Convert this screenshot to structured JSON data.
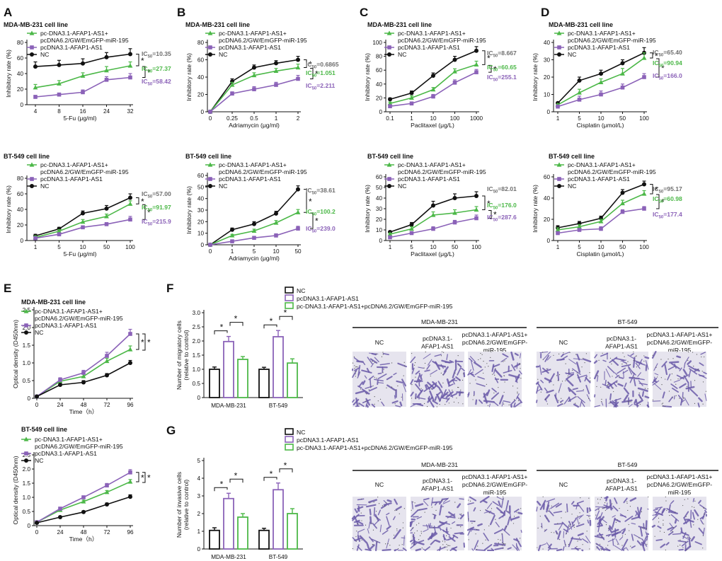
{
  "colors": {
    "nc": "#111111",
    "afap": "#8b62b8",
    "res": "#4cb848",
    "ic_nc": "#6e6e6e",
    "stain": "#6a5ba8"
  },
  "legends": {
    "line3a": [
      "pc-DNA3.1-AFAP1-AS1+",
      "pcDNA6.2/GW/EmGFP-miR-195",
      "pcDNA3.1-AFAP1-AS1",
      "NC"
    ],
    "line3b": [
      "pc-DNA3.1-AFAP1-AS1+",
      "pcDNA6.2/GW/EmGFP-miR-195",
      "pcDNA3.1-AFAP1-AS1",
      "NC"
    ],
    "bar": [
      "NC",
      "pcDNA3.1-AFAP1-AS1",
      "pc-DNA3.1-AFAP1-AS1+pcDNA6.2/GW/EmGFP-miR-195"
    ]
  },
  "asterisk": "*",
  "chart_data": [
    {
      "panel": "A",
      "title": "MDA-MB-231 cell line",
      "type": "line",
      "xlabel": "5-Fu (μg/ml)",
      "ylabel": "Inhibitory rate (%)",
      "categories": [
        "4",
        "8",
        "16",
        "24",
        "32"
      ],
      "ylim": [
        0,
        80
      ],
      "yticks": [
        "0",
        "20",
        "40",
        "60",
        "80"
      ],
      "series": [
        {
          "name": "NC",
          "values": [
            49,
            51,
            53,
            61,
            65
          ],
          "errors": [
            6,
            6,
            6,
            6,
            7
          ]
        },
        {
          "name": "pc-DNA3.1-AFAP1-AS1+pcDNA6.2/GW/EmGFP-miR-195",
          "values": [
            22,
            27,
            37,
            44,
            50
          ],
          "errors": [
            4,
            4,
            4,
            5,
            5
          ]
        },
        {
          "name": "pcDNA3.1-AFAP1-AS1",
          "values": [
            10,
            13,
            16,
            32,
            35
          ],
          "errors": [
            2,
            2,
            3,
            4,
            5
          ]
        }
      ],
      "ic50": [
        "IC50=10.35",
        "IC50=27.37",
        "IC50=58.42"
      ]
    },
    {
      "panel": "A",
      "title": "BT-549 cell line",
      "type": "line",
      "xlabel": "5-Fu (μg/ml)",
      "ylabel": "Inhibitory rate (%)",
      "categories": [
        "1",
        "5",
        "10",
        "50",
        "100"
      ],
      "ylim": [
        0,
        80
      ],
      "yticks": [
        "0",
        "20",
        "40",
        "60",
        "80"
      ],
      "series": [
        {
          "name": "NC",
          "values": [
            6,
            15,
            35,
            41,
            55
          ],
          "errors": [
            2,
            2,
            3,
            4,
            5
          ]
        },
        {
          "name": "pc-DNA3.1-AFAP1-AS1+pcDNA6.2/GW/EmGFP-miR-195",
          "values": [
            4,
            12,
            24,
            31,
            47
          ],
          "errors": [
            2,
            2,
            3,
            3,
            4
          ]
        },
        {
          "name": "pcDNA3.1-AFAP1-AS1",
          "values": [
            3,
            8,
            17,
            21,
            27
          ],
          "errors": [
            1,
            2,
            2,
            2,
            4
          ]
        }
      ],
      "ic50": [
        "IC50=57.00",
        "IC50=91.97",
        "IC50=215.9"
      ]
    },
    {
      "panel": "B",
      "title": "MDA-MB-231 cell line",
      "type": "line",
      "xlabel": "Adriamycin (μg/ml)",
      "ylabel": "Inhibitory rate (%)",
      "categories": [
        "0",
        "0.25",
        "0.5",
        "1",
        "2"
      ],
      "ylim": [
        0,
        80
      ],
      "yticks": [
        "0",
        "20",
        "40",
        "60",
        "80"
      ],
      "series": [
        {
          "name": "NC",
          "values": [
            0,
            35,
            51,
            56,
            60
          ],
          "errors": [
            0,
            3,
            3,
            3,
            4
          ]
        },
        {
          "name": "pc-DNA3.1-AFAP1-AS1+pcDNA6.2/GW/EmGFP-miR-195",
          "values": [
            0,
            31,
            42,
            47,
            51
          ],
          "errors": [
            0,
            3,
            3,
            3,
            4
          ]
        },
        {
          "name": "pcDNA3.1-AFAP1-AS1",
          "values": [
            0,
            21,
            26,
            31,
            38
          ],
          "errors": [
            0,
            2,
            3,
            3,
            4
          ]
        }
      ],
      "ic50": [
        "IC50=0.6865",
        "IC50=1.051",
        "IC50=2.211"
      ]
    },
    {
      "panel": "B",
      "title": "BT-549 cell line",
      "type": "line",
      "xlabel": "Adriamycin (μg/ml)",
      "ylabel": "Inhibitory rate (%)",
      "categories": [
        "0",
        "1",
        "5",
        "10",
        "50"
      ],
      "ylim": [
        0,
        60
      ],
      "yticks": [
        "0",
        "10",
        "20",
        "30",
        "40",
        "50",
        "60"
      ],
      "series": [
        {
          "name": "NC",
          "values": [
            0,
            13,
            18,
            27,
            48
          ],
          "errors": [
            0,
            1.5,
            2,
            2,
            3
          ]
        },
        {
          "name": "pc-DNA3.1-AFAP1-AS1+pcDNA6.2/GW/EmGFP-miR-195",
          "values": [
            0,
            8,
            12,
            19,
            28
          ],
          "errors": [
            0,
            1,
            1.5,
            2,
            2.5
          ]
        },
        {
          "name": "pcDNA3.1-AFAP1-AS1",
          "values": [
            0,
            3,
            6,
            8,
            14
          ],
          "errors": [
            0,
            1,
            1,
            1.5,
            2
          ]
        }
      ],
      "ic50": [
        "IC50=38.61",
        "IC50=100.2",
        "IC50=239.0"
      ]
    },
    {
      "panel": "C",
      "title": "MDA-MB-231 cell line",
      "type": "line",
      "xlabel": "Paclitaxel (μg/L)",
      "ylabel": "Inhibitory rate (%)",
      "categories": [
        "0.1",
        "1",
        "10",
        "100",
        "1000"
      ],
      "ylim": [
        0,
        100
      ],
      "yticks": [
        "0",
        "20",
        "40",
        "60",
        "80",
        "100"
      ],
      "series": [
        {
          "name": "NC",
          "values": [
            18,
            27,
            52,
            75,
            88
          ],
          "errors": [
            2,
            3,
            4,
            5,
            6
          ]
        },
        {
          "name": "pc-DNA3.1-AFAP1-AS1+pcDNA6.2/GW/EmGFP-miR-195",
          "values": [
            12,
            20,
            32,
            58,
            68
          ],
          "errors": [
            2,
            3,
            3,
            4,
            5
          ]
        },
        {
          "name": "pcDNA3.1-AFAP1-AS1",
          "values": [
            8,
            12,
            22,
            42,
            57
          ],
          "errors": [
            1,
            2,
            3,
            4,
            4
          ]
        }
      ],
      "ic50": [
        "IC50=8.667",
        "IC50=60.65",
        "IC50=255.1"
      ]
    },
    {
      "panel": "C",
      "title": "BT-549 cell line",
      "type": "line",
      "xlabel": "Paclitaxel (μg/L)",
      "ylabel": "Inhibitory rate (%)",
      "categories": [
        "1",
        "5",
        "10",
        "50",
        "100"
      ],
      "ylim": [
        0,
        60
      ],
      "yticks": [
        "0",
        "10",
        "20",
        "30",
        "40",
        "50",
        "60"
      ],
      "series": [
        {
          "name": "NC",
          "values": [
            8,
            15,
            33,
            40,
            42
          ],
          "errors": [
            1,
            2,
            4,
            4,
            4
          ]
        },
        {
          "name": "pc-DNA3.1-AFAP1-AS1+pcDNA6.2/GW/EmGFP-miR-195",
          "values": [
            6,
            11,
            24,
            26,
            29
          ],
          "errors": [
            1,
            2,
            3,
            3,
            3
          ]
        },
        {
          "name": "pcDNA3.1-AFAP1-AS1",
          "values": [
            3,
            7,
            11,
            17,
            21
          ],
          "errors": [
            1,
            1,
            2,
            2,
            3
          ]
        }
      ],
      "ic50": [
        "IC50=82.01",
        "IC50=176.0",
        "IC50=287.6"
      ]
    },
    {
      "panel": "D",
      "title": "MDA-MB-231 cell line",
      "type": "line",
      "xlabel": "Cisplatin (μmol/L)",
      "ylabel": "Inhibitory rate (%)",
      "categories": [
        "1",
        "5",
        "10",
        "50",
        "100"
      ],
      "ylim": [
        0,
        40
      ],
      "yticks": [
        "0",
        "10",
        "20",
        "30",
        "40"
      ],
      "series": [
        {
          "name": "NC",
          "values": [
            5,
            18,
            22,
            28,
            34
          ],
          "errors": [
            0.5,
            2,
            2,
            2,
            3
          ]
        },
        {
          "name": "pc-DNA3.1-AFAP1-AS1+pcDNA6.2/GW/EmGFP-miR-195",
          "values": [
            4,
            11,
            17,
            22,
            31
          ],
          "errors": [
            0.5,
            2,
            2,
            3,
            3
          ]
        },
        {
          "name": "pcDNA3.1-AFAP1-AS1",
          "values": [
            3,
            7,
            10,
            14,
            20
          ],
          "errors": [
            0.5,
            2,
            2,
            2,
            2
          ]
        }
      ],
      "ic50": [
        "IC50=65.40",
        "IC50=90.94",
        "IC50=166.0"
      ]
    },
    {
      "panel": "D",
      "title": "BT-549 cell line",
      "type": "line",
      "xlabel": "Cisplatin (μmol/L)",
      "ylabel": "Inhibitory rate (%)",
      "categories": [
        "1",
        "5",
        "10",
        "50",
        "100"
      ],
      "ylim": [
        0,
        60
      ],
      "yticks": [
        "0",
        "20",
        "40",
        "60"
      ],
      "series": [
        {
          "name": "NC",
          "values": [
            12,
            16,
            21,
            45,
            53
          ],
          "errors": [
            2,
            2,
            2,
            3,
            3
          ]
        },
        {
          "name": "pc-DNA3.1-AFAP1-AS1+pcDNA6.2/GW/EmGFP-miR-195",
          "values": [
            10,
            13,
            18,
            35,
            44
          ],
          "errors": [
            2,
            2,
            2,
            3,
            3
          ]
        },
        {
          "name": "pcDNA3.1-AFAP1-AS1",
          "values": [
            7,
            10,
            11,
            27,
            30
          ],
          "errors": [
            1,
            1,
            2,
            2,
            2
          ]
        }
      ],
      "ic50": [
        "IC50=95.17",
        "IC50=60.98",
        "IC50=177.4"
      ]
    },
    {
      "panel": "E",
      "title": "MDA-MB-231 cell line",
      "type": "line",
      "xlabel": "Time（h）",
      "ylabel": "Optical density (D450nm)",
      "categories": [
        "0",
        "24",
        "48",
        "72",
        "96"
      ],
      "ylim": [
        0,
        2.5
      ],
      "yticks": [
        "0",
        "0.5",
        "1.0",
        "1.5",
        "2.0",
        "2.5"
      ],
      "series": [
        {
          "name": "pc-DNA3.1-AFAP1-AS1+pcDNA6.2/GW/EmGFP-miR-195",
          "values": [
            0.05,
            0.48,
            0.62,
            1.05,
            1.38
          ],
          "errors": [
            0.02,
            0.05,
            0.06,
            0.08,
            0.1
          ]
        },
        {
          "name": "pcDNA3.1-AFAP1-AS1",
          "values": [
            0.05,
            0.52,
            0.72,
            1.2,
            1.82
          ],
          "errors": [
            0.02,
            0.06,
            0.07,
            0.1,
            0.13
          ]
        },
        {
          "name": "NC",
          "values": [
            0.05,
            0.38,
            0.45,
            0.65,
            1.0
          ],
          "errors": [
            0.02,
            0.04,
            0.05,
            0.05,
            0.07
          ]
        }
      ]
    },
    {
      "panel": "E",
      "title": "BT-549 cell line",
      "type": "line",
      "xlabel": "Time（h）",
      "ylabel": "Optical density (D450nm)",
      "categories": [
        "0",
        "24",
        "48",
        "72",
        "96"
      ],
      "ylim": [
        0,
        2.5
      ],
      "yticks": [
        "0",
        "0.5",
        "1.0",
        "1.5",
        "2.0",
        "2.5"
      ],
      "series": [
        {
          "name": "pc-DNA3.1-AFAP1-AS1+pcDNA6.2/GW/EmGFP-miR-195",
          "values": [
            0.12,
            0.55,
            0.85,
            1.18,
            1.55
          ],
          "errors": [
            0.02,
            0.04,
            0.05,
            0.06,
            0.08
          ]
        },
        {
          "name": "pcDNA3.1-AFAP1-AS1",
          "values": [
            0.12,
            0.6,
            1.0,
            1.42,
            1.88
          ],
          "errors": [
            0.02,
            0.05,
            0.05,
            0.07,
            0.1
          ]
        },
        {
          "name": "NC",
          "values": [
            0.1,
            0.3,
            0.48,
            0.75,
            1.02
          ],
          "errors": [
            0.02,
            0.03,
            0.04,
            0.05,
            0.07
          ]
        }
      ]
    },
    {
      "panel": "F",
      "type": "bar",
      "ylabel": "Number of migratory cells (relative to control)",
      "categories": [
        "MDA-MB-231",
        "BT-549"
      ],
      "ylim": [
        0,
        3
      ],
      "yticks": [
        "0",
        "0.5",
        "1.0",
        "1.5",
        "2.0",
        "2.5",
        "3.0"
      ],
      "series": [
        {
          "name": "NC",
          "values": [
            1.0,
            1.0
          ],
          "errors": [
            0.08,
            0.07
          ]
        },
        {
          "name": "pcDNA3.1-AFAP1-AS1",
          "values": [
            1.98,
            2.15
          ],
          "errors": [
            0.18,
            0.22
          ]
        },
        {
          "name": "pc-DNA3.1-AFAP1-AS1+pcDNA6.2/GW/EmGFP-miR-195",
          "values": [
            1.35,
            1.22
          ],
          "errors": [
            0.1,
            0.15
          ]
        }
      ]
    },
    {
      "panel": "G",
      "type": "bar",
      "ylabel": "Number of invasive cells (relative to control)",
      "categories": [
        "MDA-MB-231",
        "BT-549"
      ],
      "ylim": [
        0,
        5
      ],
      "yticks": [
        "0",
        "1",
        "2",
        "3",
        "4",
        "5"
      ],
      "series": [
        {
          "name": "NC",
          "values": [
            1.05,
            1.05
          ],
          "errors": [
            0.15,
            0.12
          ]
        },
        {
          "name": "pcDNA3.1-AFAP1-AS1",
          "values": [
            2.85,
            3.35
          ],
          "errors": [
            0.3,
            0.38
          ]
        },
        {
          "name": "pc-DNA3.1-AFAP1-AS1+pcDNA6.2/GW/EmGFP-miR-195",
          "values": [
            1.8,
            2.0
          ],
          "errors": [
            0.2,
            0.28
          ]
        }
      ]
    }
  ],
  "micro": {
    "F": {
      "groups": [
        "MDA-MB-231",
        "BT-549"
      ],
      "labels": [
        [
          "NC"
        ],
        [
          "pcDNA3.1-",
          "AFAP1-AS1"
        ],
        [
          "pcDNA3.1-AFAP1-AS1+",
          "pcDNA6.2/GW/EmGFP-",
          "miR-195"
        ]
      ]
    },
    "G": {
      "groups": [
        "MDA-MB-231",
        "BT-549"
      ],
      "labels": [
        [
          "NC"
        ],
        [
          "pcDNA3.1-",
          "AFAP1-AS1"
        ],
        [
          "pcDNA3.1-AFAP1-AS1+",
          "pcDNA6.2/GW/EmGFP-",
          "miR-195"
        ]
      ]
    }
  }
}
